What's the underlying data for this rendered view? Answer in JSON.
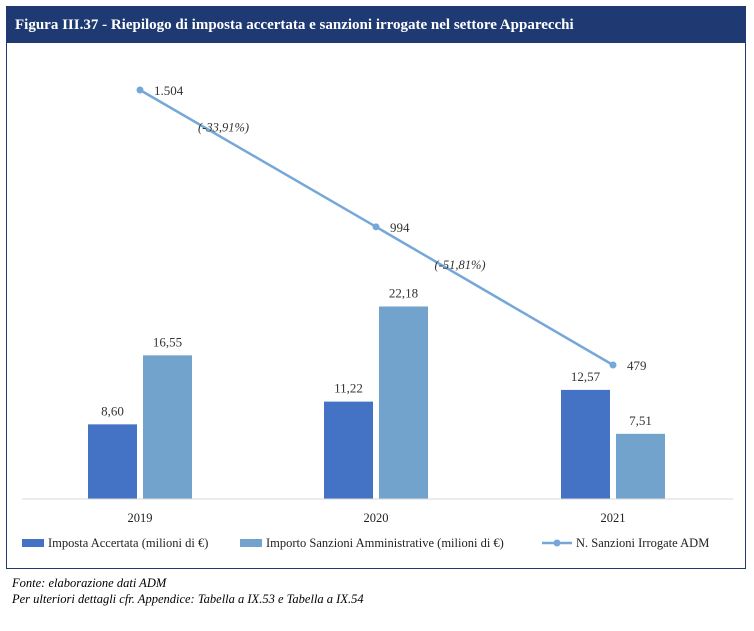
{
  "figure": {
    "title": "Figura III.37 - Riepilogo di imposta accertata e sanzioni irrogate nel settore Apparecchi"
  },
  "footnotes": {
    "source": "Fonte: elaborazione dati ADM",
    "details": "Per ulteriori dettagli cfr. Appendice: Tabella a IX.53 e Tabella a IX.54"
  },
  "chart_data": {
    "type": "bar",
    "categories": [
      "2019",
      "2020",
      "2021"
    ],
    "series": [
      {
        "name": "Imposta Accertata  (milioni di €)",
        "type": "bar",
        "values": [
          8.6,
          11.22,
          12.57
        ],
        "labels": [
          "8,60",
          "11,22",
          "12,57"
        ],
        "color": "#4472c4"
      },
      {
        "name": "Importo Sanzioni Amministrative (milioni di €)",
        "type": "bar",
        "values": [
          16.55,
          22.18,
          7.51
        ],
        "labels": [
          "16,55",
          "22,18",
          "7,51"
        ],
        "color": "#72a3cc"
      },
      {
        "name": "N. Sanzioni Irrogate ADM",
        "type": "line",
        "values": [
          1504,
          994,
          479
        ],
        "labels": [
          "1.504",
          "994",
          "479"
        ],
        "color": "#75a8d8"
      }
    ],
    "annotations": [
      "(-33,91%)",
      "(-51,81%)"
    ],
    "bar_ylim": [
      0,
      30
    ],
    "line_ylim": [
      0,
      1600
    ],
    "legend_position": "bottom",
    "grid": false
  }
}
